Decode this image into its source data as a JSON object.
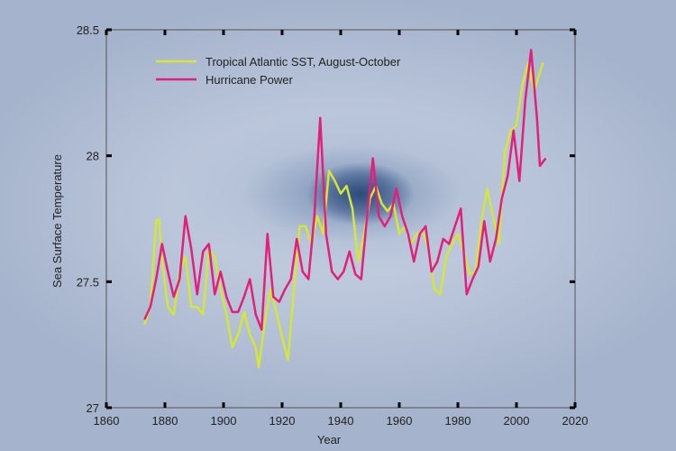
{
  "chart_data": {
    "type": "line",
    "x_label": "Year",
    "y_label": "Sea Surface Temperature",
    "xlim": [
      1860,
      2020
    ],
    "xticks": [
      1860,
      1880,
      1900,
      1920,
      1940,
      1960,
      1980,
      2000,
      2020
    ],
    "ylim": [
      27,
      28.5
    ],
    "yticks": [
      27,
      27.5,
      28,
      28.5
    ],
    "legend": "upper left",
    "series": [
      {
        "name": "Tropical Atlantic SST, August-October",
        "color": "#d4e63a",
        "x": [
          1873,
          1875,
          1877,
          1878,
          1879,
          1881,
          1883,
          1885,
          1887,
          1889,
          1891,
          1893,
          1895,
          1897,
          1899,
          1901,
          1903,
          1905,
          1907,
          1909,
          1911,
          1912,
          1914,
          1916,
          1918,
          1920,
          1922,
          1924,
          1926,
          1928,
          1930,
          1932,
          1934,
          1936,
          1938,
          1940,
          1942,
          1944,
          1946,
          1948,
          1950,
          1952,
          1954,
          1956,
          1958,
          1960,
          1962,
          1964,
          1966,
          1968,
          1970,
          1972,
          1974,
          1976,
          1978,
          1980,
          1982,
          1984,
          1986,
          1988,
          1990,
          1992,
          1994,
          1996,
          1998,
          2000,
          2002,
          2004,
          2006,
          2008,
          2009
        ],
        "values": [
          27.33,
          27.4,
          27.74,
          27.75,
          27.58,
          27.4,
          27.37,
          27.54,
          27.6,
          27.4,
          27.4,
          27.37,
          27.63,
          27.6,
          27.47,
          27.37,
          27.24,
          27.29,
          27.38,
          27.29,
          27.24,
          27.16,
          27.33,
          27.47,
          27.38,
          27.28,
          27.19,
          27.47,
          27.72,
          27.72,
          27.65,
          27.76,
          27.69,
          27.94,
          27.9,
          27.85,
          27.88,
          27.79,
          27.58,
          27.69,
          27.83,
          27.88,
          27.81,
          27.78,
          27.81,
          27.69,
          27.72,
          27.65,
          27.69,
          27.7,
          27.63,
          27.47,
          27.45,
          27.6,
          27.65,
          27.69,
          27.62,
          27.53,
          27.54,
          27.74,
          27.87,
          27.76,
          27.65,
          28.01,
          28.1,
          28.12,
          28.28,
          28.37,
          28.26,
          28.33,
          28.37
        ]
      },
      {
        "name": "Hurricane Power",
        "color": "#e0207a",
        "x": [
          1873,
          1875,
          1877,
          1879,
          1881,
          1883,
          1885,
          1887,
          1889,
          1891,
          1893,
          1895,
          1897,
          1899,
          1901,
          1903,
          1905,
          1907,
          1909,
          1911,
          1913,
          1915,
          1917,
          1919,
          1921,
          1923,
          1925,
          1927,
          1929,
          1931,
          1933,
          1935,
          1937,
          1939,
          1941,
          1943,
          1945,
          1947,
          1949,
          1951,
          1953,
          1955,
          1957,
          1959,
          1961,
          1963,
          1965,
          1967,
          1969,
          1971,
          1973,
          1975,
          1977,
          1979,
          1981,
          1983,
          1985,
          1987,
          1989,
          1991,
          1993,
          1995,
          1997,
          1999,
          2001,
          2003,
          2005,
          2007,
          2008,
          2010
        ],
        "values": [
          27.35,
          27.4,
          27.51,
          27.65,
          27.54,
          27.44,
          27.51,
          27.76,
          27.63,
          27.45,
          27.62,
          27.65,
          27.45,
          27.54,
          27.44,
          27.38,
          27.38,
          27.44,
          27.51,
          27.37,
          27.31,
          27.69,
          27.44,
          27.42,
          27.47,
          27.51,
          27.67,
          27.54,
          27.51,
          27.76,
          28.15,
          27.69,
          27.54,
          27.51,
          27.54,
          27.62,
          27.53,
          27.51,
          27.76,
          27.99,
          27.76,
          27.72,
          27.76,
          27.87,
          27.76,
          27.69,
          27.58,
          27.69,
          27.72,
          27.54,
          27.58,
          27.67,
          27.65,
          27.72,
          27.79,
          27.45,
          27.51,
          27.56,
          27.74,
          27.58,
          27.67,
          27.83,
          27.92,
          28.1,
          27.9,
          28.22,
          28.42,
          28.15,
          27.96,
          27.99
        ]
      }
    ]
  }
}
